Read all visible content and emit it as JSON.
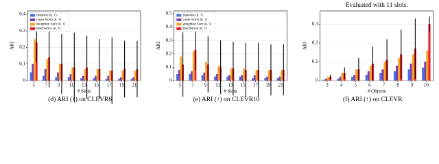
{
  "chart_data": [
    {
      "type": "bar",
      "caption": "(d) ARI (↑) on CLEVR6",
      "xlabel": "# Slots",
      "ylabel": "ARI",
      "categories": [
        "5",
        "7",
        "9",
        "11",
        "13",
        "15",
        "17",
        "19",
        "21"
      ],
      "ylim": [
        0,
        0.42
      ],
      "yticks": [
        0,
        0.1,
        0.2,
        0.3,
        0.4
      ],
      "legend": "upper left",
      "series": [
        {
          "name": "Baseline (6, 7)",
          "color": "#4a6fe0",
          "values": [
            0.05,
            0.03,
            0.02,
            0.02,
            0.015,
            0.015,
            0.01,
            0.01,
            0.01
          ]
        },
        {
          "name": "Layer Norm (6, 7)",
          "color": "#7a3fb0",
          "values": [
            0.1,
            0.07,
            0.05,
            0.04,
            0.03,
            0.03,
            0.03,
            0.02,
            0.02
          ]
        },
        {
          "name": "Weighted Sum (6, 7)",
          "color": "#f5a623",
          "values": [
            0.25,
            0.13,
            0.1,
            0.08,
            0.07,
            0.07,
            0.06,
            0.06,
            0.06
          ]
        },
        {
          "name": "BatchNorm (6, 7)",
          "color": "#e8202a",
          "values": [
            0.23,
            0.14,
            0.1,
            0.08,
            0.08,
            0.07,
            0.06,
            0.07,
            0.07
          ],
          "errors": [
            0.12,
            0.18,
            0.18,
            0.21,
            0.19,
            0.18,
            0.2,
            0.17,
            0.17
          ]
        }
      ]
    },
    {
      "type": "bar",
      "caption": "(e) ARI (↑) on CLEVR10",
      "xlabel": "# Slots",
      "ylabel": "ARI",
      "categories": [
        "5",
        "7",
        "9",
        "11",
        "13",
        "15",
        "17",
        "19",
        "21"
      ],
      "ylim": [
        0,
        0.52
      ],
      "yticks": [
        0,
        0.1,
        0.2,
        0.3,
        0.4,
        0.5
      ],
      "legend": "upper left",
      "series": [
        {
          "name": "Baseline (6, 7)",
          "color": "#4a6fe0",
          "values": [
            0.05,
            0.05,
            0.04,
            0.03,
            0.03,
            0.03,
            0.02,
            0.02,
            0.02
          ]
        },
        {
          "name": "Layer Norm (6, 7)",
          "color": "#7a3fb0",
          "values": [
            0.08,
            0.07,
            0.06,
            0.05,
            0.04,
            0.04,
            0.04,
            0.03,
            0.03
          ]
        },
        {
          "name": "Weighted Sum (6, 7)",
          "color": "#f5a623",
          "values": [
            0.18,
            0.22,
            0.14,
            0.11,
            0.09,
            0.09,
            0.08,
            0.08,
            0.08
          ]
        },
        {
          "name": "BatchNorm (6, 7)",
          "color": "#e8202a",
          "values": [
            0.12,
            0.23,
            0.12,
            0.1,
            0.09,
            0.08,
            0.08,
            0.08,
            0.08
          ],
          "errors": [
            0.24,
            0.15,
            0.21,
            0.2,
            0.2,
            0.2,
            0.2,
            0.19,
            0.19
          ]
        }
      ]
    },
    {
      "type": "bar",
      "title": "Evaluated with 11 slots.",
      "caption": "(f) ARI (↑) on CLEVR",
      "xlabel": "# Objects",
      "ylabel": "ARI",
      "categories": [
        "3",
        "4",
        "5",
        "6",
        "7",
        "8",
        "9",
        "10"
      ],
      "ylim": [
        0,
        0.37
      ],
      "yticks": [
        0,
        0.1,
        0.2,
        0.3
      ],
      "series": [
        {
          "color": "#4a6fe0",
          "values": [
            0.005,
            0.01,
            0.02,
            0.03,
            0.04,
            0.05,
            0.06,
            0.07
          ]
        },
        {
          "color": "#7a3fb0",
          "values": [
            0.01,
            0.02,
            0.03,
            0.05,
            0.06,
            0.08,
            0.09,
            0.1
          ]
        },
        {
          "color": "#f5a623",
          "values": [
            0.02,
            0.04,
            0.06,
            0.08,
            0.1,
            0.12,
            0.14,
            0.16
          ]
        },
        {
          "color": "#e8202a",
          "values": [
            0.02,
            0.04,
            0.06,
            0.09,
            0.11,
            0.14,
            0.17,
            0.3
          ],
          "errors": [
            0.01,
            0.03,
            0.06,
            0.09,
            0.11,
            0.13,
            0.16,
            0.04
          ]
        }
      ]
    }
  ]
}
